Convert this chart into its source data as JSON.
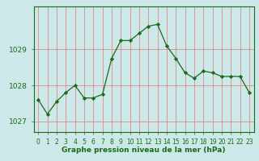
{
  "x": [
    0,
    1,
    2,
    3,
    4,
    5,
    6,
    7,
    8,
    9,
    10,
    11,
    12,
    13,
    14,
    15,
    16,
    17,
    18,
    19,
    20,
    21,
    22,
    23
  ],
  "y": [
    1027.6,
    1027.2,
    1027.55,
    1027.8,
    1028.0,
    1027.65,
    1027.65,
    1027.75,
    1028.75,
    1029.25,
    1029.25,
    1029.45,
    1029.65,
    1029.7,
    1029.1,
    1028.75,
    1028.35,
    1028.2,
    1028.4,
    1028.35,
    1028.25,
    1028.25,
    1028.25,
    1027.8
  ],
  "ylim": [
    1026.7,
    1030.2
  ],
  "yticks": [
    1027,
    1028,
    1029
  ],
  "xticks": [
    0,
    1,
    2,
    3,
    4,
    5,
    6,
    7,
    8,
    9,
    10,
    11,
    12,
    13,
    14,
    15,
    16,
    17,
    18,
    19,
    20,
    21,
    22,
    23
  ],
  "line_color": "#1a6b1a",
  "marker_color": "#1a6b1a",
  "bg_color": "#cce8e8",
  "grid_color": "#e08080",
  "xlabel": "Graphe pression niveau de la mer (hPa)",
  "xlabel_color": "#1a6b1a",
  "axis_color": "#1a6b1a",
  "tick_color": "#1a6b1a",
  "tick_fontsize": 5.5,
  "xlabel_fontsize": 6.5,
  "ytick_fontsize": 6.5
}
